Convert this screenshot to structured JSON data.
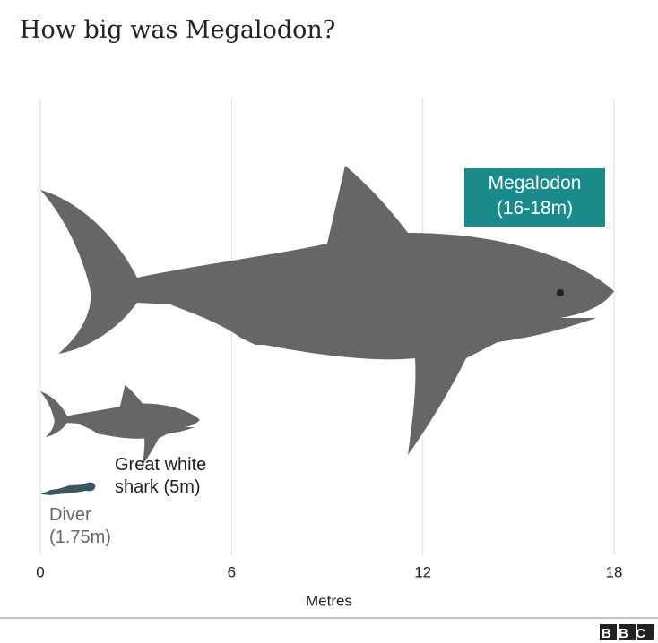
{
  "chart_data": {
    "type": "pictogram",
    "title": "How big was Megalodon?",
    "categories": [
      "Megalodon\n(16-18m)",
      "Great white\nshark (5m)",
      "Diver\n(1.75m)"
    ],
    "values": [
      18,
      5,
      1.75
    ],
    "colors": [
      "#666666",
      "#666666",
      "#3d5560"
    ],
    "x_label": "Metres",
    "xlim": [
      0,
      18
    ],
    "xticks": [
      0,
      6,
      12,
      18
    ],
    "grid": true,
    "logo": "BBC"
  }
}
